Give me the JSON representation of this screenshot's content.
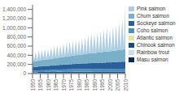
{
  "chart_data": {
    "type": "area",
    "stacked": true,
    "grid": false,
    "legend": "right",
    "x": [
      1950,
      1951,
      1952,
      1953,
      1954,
      1955,
      1956,
      1957,
      1958,
      1959,
      1960,
      1961,
      1962,
      1963,
      1964,
      1965,
      1966,
      1967,
      1968,
      1969,
      1970,
      1971,
      1972,
      1973,
      1974,
      1975,
      1976,
      1977,
      1978,
      1979,
      1980,
      1981,
      1982,
      1983,
      1984,
      1985,
      1986,
      1987,
      1988,
      1989,
      1990,
      1991,
      1992,
      1993,
      1994,
      1995,
      1996,
      1997,
      1998,
      1999,
      2000,
      2001,
      2002,
      2003,
      2004,
      2005,
      2006,
      2007,
      2008,
      2009,
      2010
    ],
    "xlim": [
      1950,
      2010
    ],
    "xticks": [
      1950,
      1955,
      1960,
      1965,
      1970,
      1975,
      1980,
      1985,
      1990,
      1995,
      2000,
      2005,
      2010
    ],
    "ylim": [
      0,
      1500000
    ],
    "yticks": [
      0,
      {
        "value": 200000,
        "label": "200,000"
      },
      {
        "value": 400000,
        "label": "400,000"
      },
      {
        "value": 600000,
        "label": "600,000"
      },
      {
        "value": 800000,
        "label": "800,000"
      },
      {
        "value": 1000000,
        "label": "1,000,000"
      },
      {
        "value": 1200000,
        "label": "1,200,000"
      },
      {
        "value": 1400000,
        "label": "1,400,000"
      }
    ],
    "series": [
      {
        "name": "Pink salmon",
        "color": "#aecde2",
        "values": [
          180000,
          30000,
          200000,
          20000,
          210000,
          30000,
          220000,
          40000,
          230000,
          20000,
          220000,
          30000,
          250000,
          30000,
          270000,
          30000,
          280000,
          20000,
          260000,
          30000,
          290000,
          20000,
          300000,
          40000,
          310000,
          30000,
          320000,
          30000,
          330000,
          20000,
          340000,
          30000,
          350000,
          20000,
          370000,
          30000,
          400000,
          20000,
          430000,
          30000,
          420000,
          30000,
          450000,
          20000,
          460000,
          20000,
          500000,
          30000,
          520000,
          20000,
          490000,
          20000,
          530000,
          20000,
          550000,
          30000,
          600000,
          20000,
          680000,
          30000,
          900000
        ]
      },
      {
        "name": "Chum salmon",
        "color": "#7aafc8",
        "values": [
          130000,
          120000,
          125000,
          128000,
          132000,
          130000,
          135000,
          138000,
          140000,
          138000,
          142000,
          145000,
          148000,
          150000,
          152000,
          155000,
          158000,
          160000,
          162000,
          165000,
          168000,
          170000,
          172000,
          175000,
          178000,
          180000,
          182000,
          185000,
          188000,
          190000,
          192000,
          195000,
          198000,
          200000,
          202000,
          205000,
          208000,
          210000,
          212000,
          215000,
          218000,
          220000,
          222000,
          225000,
          228000,
          230000,
          232000,
          235000,
          238000,
          240000,
          242000,
          245000,
          248000,
          250000,
          252000,
          255000,
          258000,
          260000,
          262000,
          265000,
          270000
        ]
      },
      {
        "name": "Sockeye salmon",
        "color": "#2a6099",
        "values": [
          80000,
          75000,
          85000,
          80000,
          90000,
          85000,
          92000,
          88000,
          95000,
          90000,
          95000,
          92000,
          98000,
          95000,
          100000,
          98000,
          102000,
          100000,
          105000,
          102000,
          108000,
          105000,
          110000,
          108000,
          112000,
          110000,
          115000,
          112000,
          118000,
          115000,
          120000,
          118000,
          122000,
          120000,
          125000,
          122000,
          128000,
          125000,
          130000,
          128000,
          132000,
          130000,
          135000,
          132000,
          138000,
          135000,
          140000,
          138000,
          142000,
          140000,
          145000,
          142000,
          148000,
          145000,
          150000,
          148000,
          152000,
          150000,
          155000,
          152000,
          158000
        ]
      },
      {
        "name": "Coho salmon",
        "color": "#4a8fbe",
        "values": [
          30000,
          28000,
          32000,
          30000,
          34000,
          32000,
          36000,
          34000,
          38000,
          36000,
          38000,
          37000,
          40000,
          38000,
          42000,
          40000,
          44000,
          42000,
          46000,
          44000,
          46000,
          45000,
          48000,
          46000,
          50000,
          48000,
          50000,
          49000,
          52000,
          50000,
          52000,
          51000,
          54000,
          52000,
          55000,
          53000,
          56000,
          54000,
          57000,
          55000,
          56000,
          54000,
          57000,
          55000,
          58000,
          56000,
          59000,
          57000,
          60000,
          58000,
          59000,
          57000,
          60000,
          58000,
          61000,
          59000,
          62000,
          60000,
          63000,
          61000,
          64000
        ]
      },
      {
        "name": "Atlantic salmon",
        "color": "#e8e4a0",
        "values": [
          3000,
          3000,
          3000,
          3000,
          3000,
          3000,
          3000,
          3000,
          3000,
          3000,
          3000,
          3000,
          3000,
          3000,
          3000,
          3000,
          3000,
          3000,
          3000,
          3000,
          3000,
          3000,
          3000,
          3000,
          3000,
          3000,
          3000,
          3000,
          3000,
          3000,
          3000,
          3000,
          3000,
          3000,
          3000,
          3000,
          3000,
          3000,
          3000,
          3000,
          3000,
          3000,
          3000,
          3000,
          3000,
          3000,
          3000,
          3000,
          3000,
          3000,
          3000,
          3000,
          3000,
          3000,
          3000,
          3000,
          3000,
          3000,
          3000,
          3000,
          3000
        ]
      },
      {
        "name": "Chinook salmon",
        "color": "#1a4a7a",
        "values": [
          20000,
          20000,
          20000,
          20000,
          22000,
          22000,
          22000,
          22000,
          24000,
          24000,
          24000,
          24000,
          26000,
          26000,
          26000,
          26000,
          28000,
          28000,
          28000,
          28000,
          30000,
          30000,
          30000,
          30000,
          30000,
          30000,
          32000,
          32000,
          32000,
          32000,
          32000,
          32000,
          32000,
          32000,
          32000,
          32000,
          32000,
          32000,
          32000,
          32000,
          30000,
          30000,
          30000,
          30000,
          30000,
          30000,
          30000,
          30000,
          30000,
          30000,
          30000,
          30000,
          30000,
          30000,
          30000,
          30000,
          30000,
          30000,
          30000,
          30000,
          30000
        ]
      },
      {
        "name": "Rainbow trout",
        "color": "#c8dff0",
        "values": [
          8000,
          8000,
          8000,
          8000,
          8000,
          8000,
          8000,
          8000,
          8000,
          8000,
          8000,
          8000,
          8000,
          8000,
          8000,
          8000,
          8000,
          8000,
          8000,
          8000,
          8000,
          8000,
          8000,
          8000,
          8000,
          8000,
          8000,
          8000,
          8000,
          8000,
          8000,
          8000,
          8000,
          8000,
          8000,
          8000,
          8000,
          8000,
          8000,
          8000,
          8000,
          8000,
          8000,
          8000,
          8000,
          8000,
          8000,
          8000,
          8000,
          8000,
          8000,
          8000,
          8000,
          8000,
          8000,
          8000,
          8000,
          8000,
          8000,
          8000,
          8000
        ]
      },
      {
        "name": "Masu salmon",
        "color": "#0a2a50",
        "values": [
          4000,
          4000,
          4000,
          4000,
          4000,
          4000,
          4000,
          4000,
          4000,
          4000,
          4000,
          4000,
          4000,
          4000,
          4000,
          4000,
          4000,
          4000,
          4000,
          4000,
          4000,
          4000,
          4000,
          4000,
          4000,
          4000,
          4000,
          4000,
          4000,
          4000,
          4000,
          4000,
          4000,
          4000,
          4000,
          4000,
          4000,
          4000,
          4000,
          4000,
          4000,
          4000,
          4000,
          4000,
          4000,
          4000,
          4000,
          4000,
          4000,
          4000,
          4000,
          4000,
          4000,
          4000,
          4000,
          4000,
          4000,
          4000,
          4000,
          4000,
          4000
        ]
      }
    ]
  }
}
